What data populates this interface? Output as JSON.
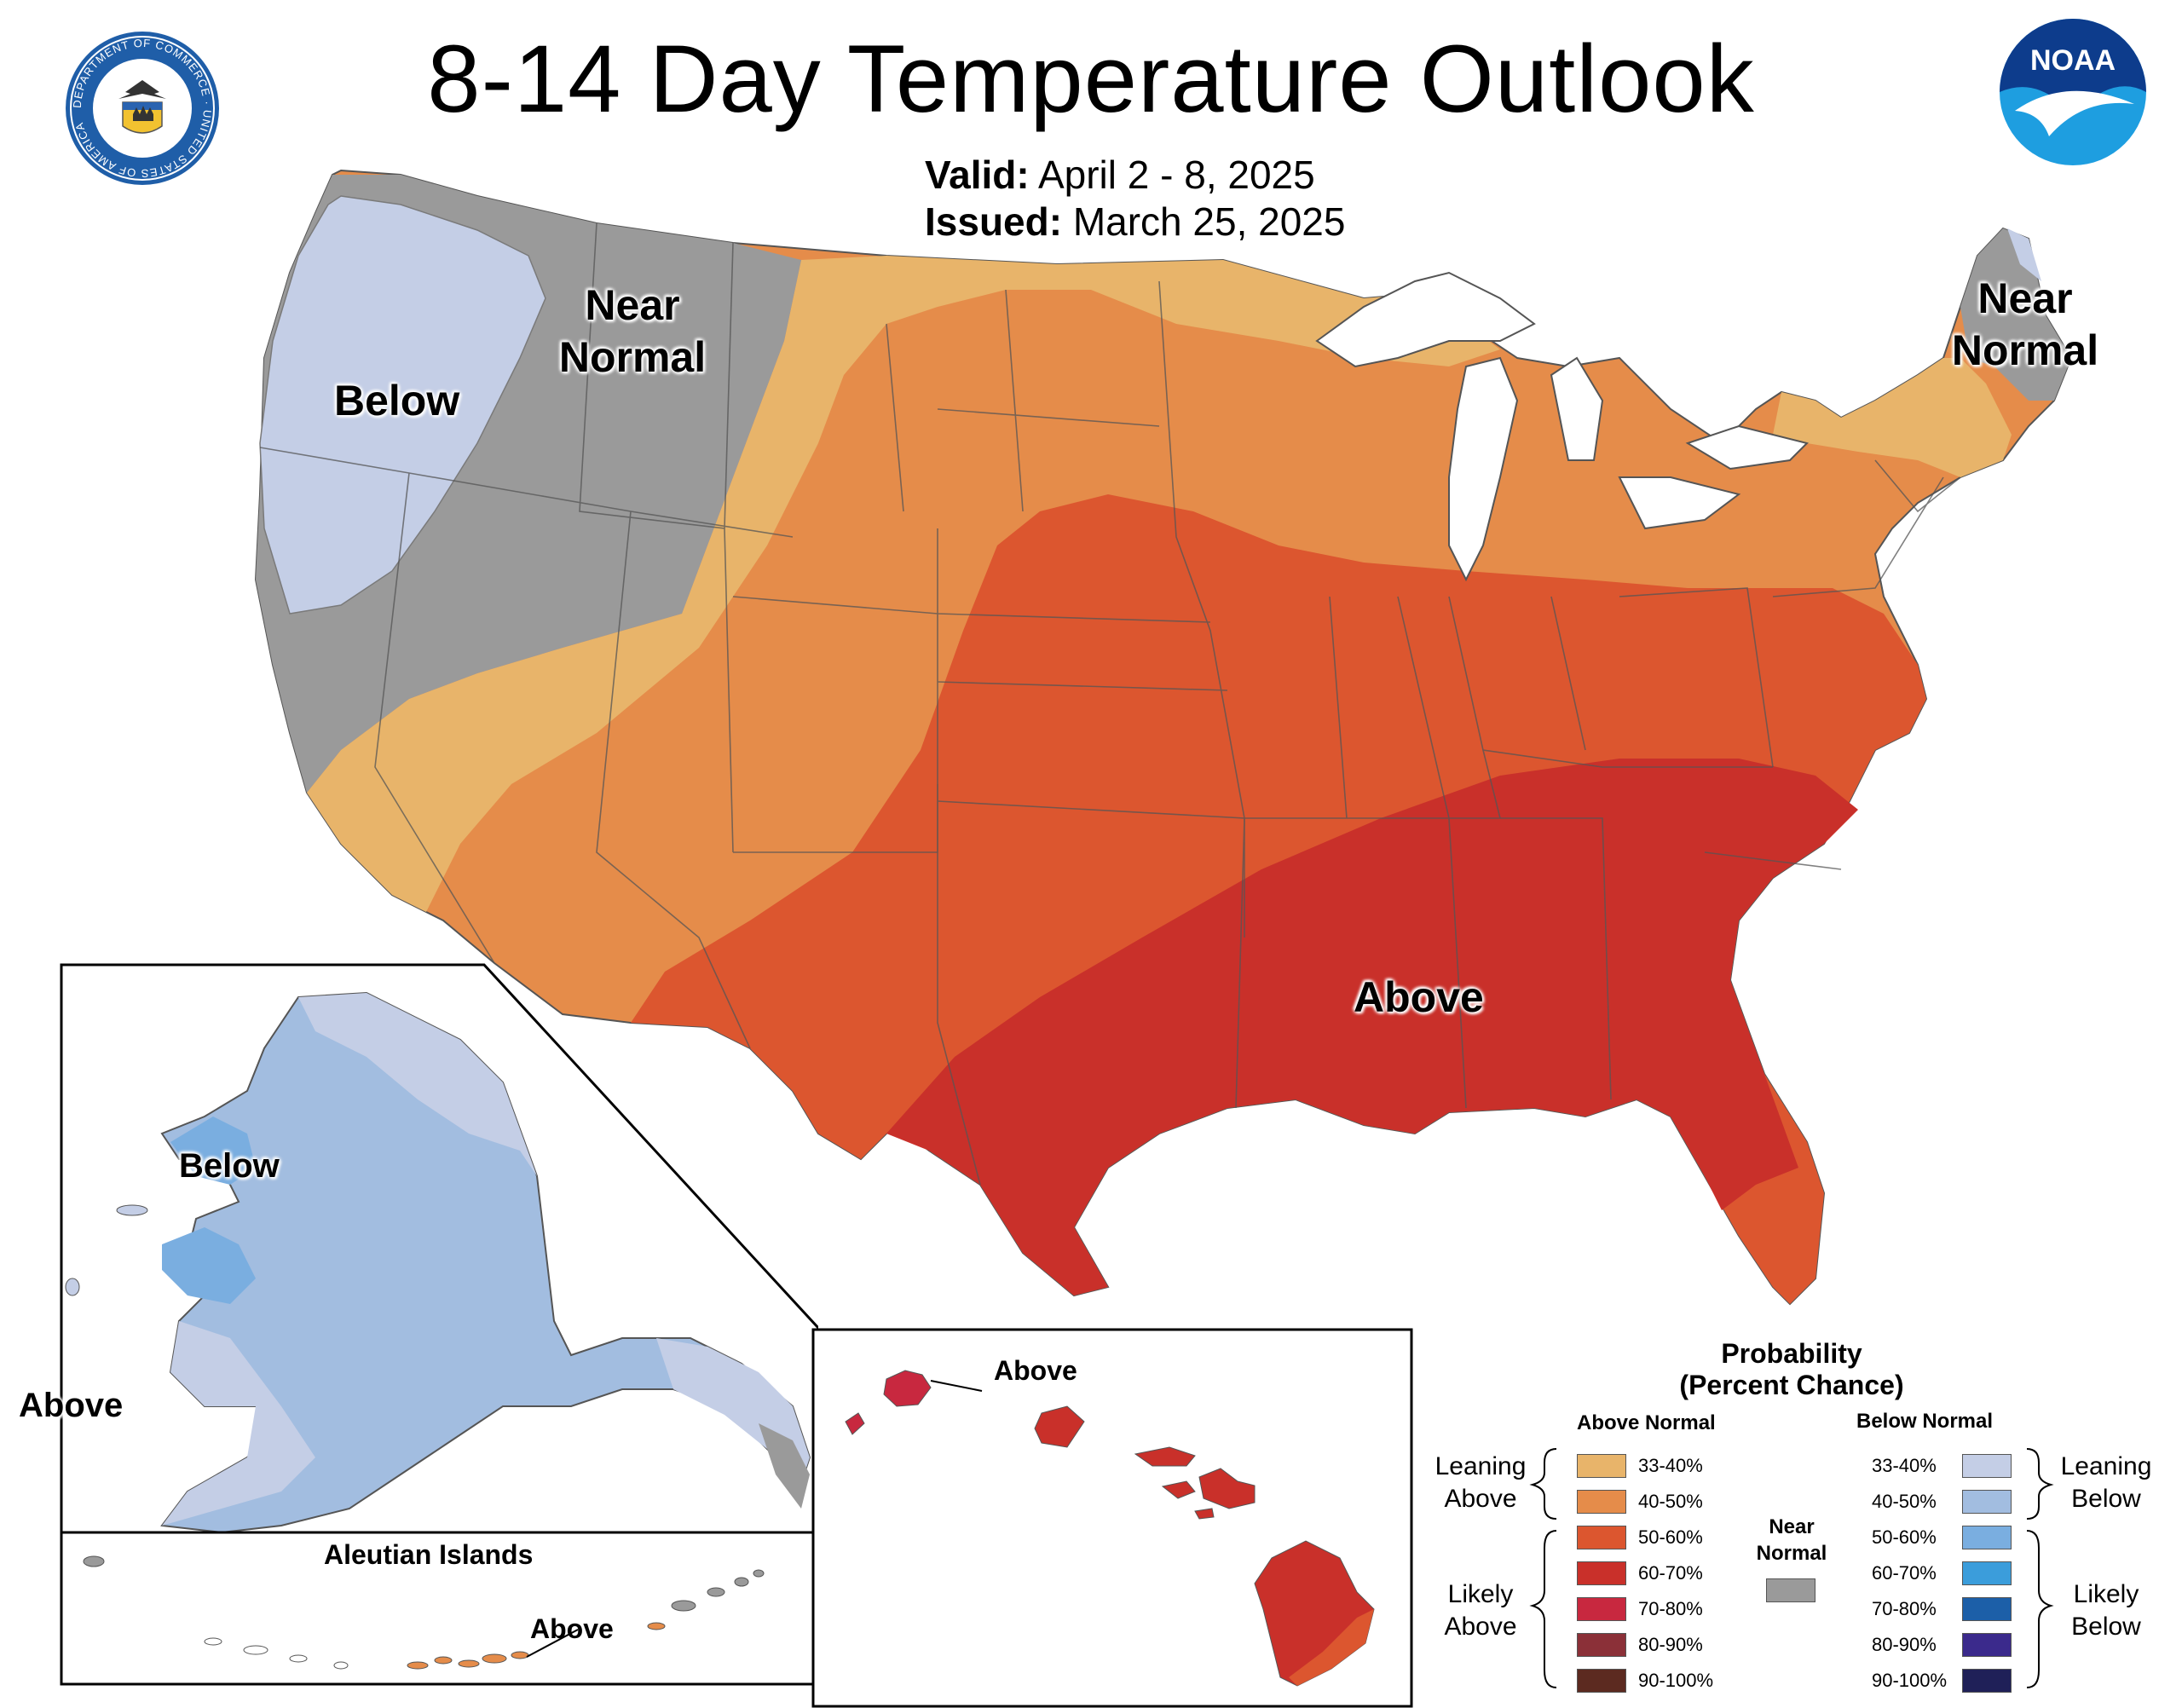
{
  "title": "8-14 Day Temperature Outlook",
  "valid": {
    "label": "Valid:",
    "value": "April 2 - 8, 2025"
  },
  "issued": {
    "label": "Issued:",
    "value": "March 25, 2025"
  },
  "logos": {
    "commerce_ring_text": "DEPARTMENT OF COMMERCE · UNITED STATES OF AMERICA",
    "noaa_text": "NOAA"
  },
  "map_labels": {
    "nw_below": "Below",
    "nw_near": "Near",
    "nw_normal": "Normal",
    "ne_near": "Near",
    "ne_normal": "Normal",
    "se_above": "Above",
    "alaska_below": "Below",
    "alaska_above": "Above",
    "aleutian_title": "Aleutian Islands",
    "aleutian_above": "Above",
    "hawaii_above": "Above"
  },
  "colors": {
    "above_33_40": "#e8b46a",
    "above_40_50": "#e58c4a",
    "above_50_60": "#dc562f",
    "above_60_70": "#c9302a",
    "above_70_80": "#c8283f",
    "above_80_90": "#8b3038",
    "above_90_100": "#5c2a20",
    "below_33_40": "#c4cee6",
    "below_40_50": "#a2bde0",
    "below_50_60": "#7aaee0",
    "below_60_70": "#3b9ddb",
    "below_70_80": "#1c5fa8",
    "below_80_90": "#3b2a8c",
    "below_90_100": "#1f2058",
    "near_normal": "#9a9a9a"
  },
  "legend": {
    "title_line1": "Probability",
    "title_line2": "(Percent Chance)",
    "above_header": "Above Normal",
    "below_header": "Below Normal",
    "near_normal_line1": "Near",
    "near_normal_line2": "Normal",
    "leaning_above_line1": "Leaning",
    "leaning_above_line2": "Above",
    "likely_above_line1": "Likely",
    "likely_above_line2": "Above",
    "leaning_below_line1": "Leaning",
    "leaning_below_line2": "Below",
    "likely_below_line1": "Likely",
    "likely_below_line2": "Below",
    "above_bins": [
      "33-40%",
      "40-50%",
      "50-60%",
      "60-70%",
      "70-80%",
      "80-90%",
      "90-100%"
    ],
    "below_bins": [
      "33-40%",
      "40-50%",
      "50-60%",
      "60-70%",
      "70-80%",
      "80-90%",
      "90-100%"
    ]
  }
}
